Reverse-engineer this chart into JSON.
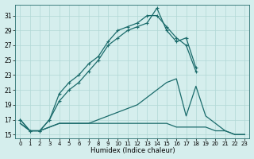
{
  "x": [
    0,
    1,
    2,
    3,
    4,
    5,
    6,
    7,
    8,
    9,
    10,
    11,
    12,
    13,
    14,
    15,
    16,
    17,
    18,
    19,
    20,
    21,
    22,
    23
  ],
  "line_upper1": [
    17.0,
    15.5,
    15.5,
    17.0,
    19.5,
    21.0,
    22.0,
    23.5,
    25.0,
    27.0,
    28.0,
    29.0,
    29.5,
    30.0,
    32.0,
    29.0,
    27.5,
    28.0,
    24.0,
    null,
    null,
    null,
    null,
    null
  ],
  "line_upper2": [
    17.0,
    15.5,
    15.5,
    17.0,
    20.5,
    22.0,
    23.0,
    24.5,
    25.5,
    27.5,
    29.0,
    29.5,
    30.0,
    31.0,
    31.0,
    29.5,
    28.0,
    27.0,
    23.5,
    null,
    null,
    null,
    null,
    null
  ],
  "line_lower_flat": [
    16.5,
    15.5,
    15.5,
    16.0,
    16.5,
    16.5,
    16.5,
    16.5,
    16.5,
    16.5,
    16.5,
    16.5,
    16.5,
    16.5,
    16.5,
    16.5,
    16.0,
    16.0,
    16.0,
    16.0,
    15.5,
    15.5,
    15.0,
    15.0
  ],
  "line_lower_rise": [
    16.5,
    15.5,
    15.5,
    16.0,
    16.5,
    16.5,
    16.5,
    16.5,
    17.0,
    17.5,
    18.0,
    18.5,
    19.0,
    20.0,
    21.0,
    22.0,
    22.5,
    17.5,
    21.5,
    17.5,
    16.5,
    15.5,
    15.0,
    15.0
  ],
  "bg_color": "#d5eeed",
  "grid_color": "#b0d8d5",
  "line_color": "#1a6b6b",
  "yticks": [
    15,
    17,
    19,
    21,
    23,
    25,
    27,
    29,
    31
  ],
  "xtick_labels": [
    "0",
    "1",
    "2",
    "3",
    "4",
    "5",
    "6",
    "7",
    "8",
    "9",
    "10",
    "11",
    "12",
    "13",
    "14",
    "15",
    "16",
    "17",
    "18",
    "19",
    "20",
    "21",
    "22",
    "23"
  ],
  "xlabel": "Humidex (Indice chaleur)",
  "ymin": 14.5,
  "ymax": 32.5,
  "xmin": -0.5,
  "xmax": 23.5
}
